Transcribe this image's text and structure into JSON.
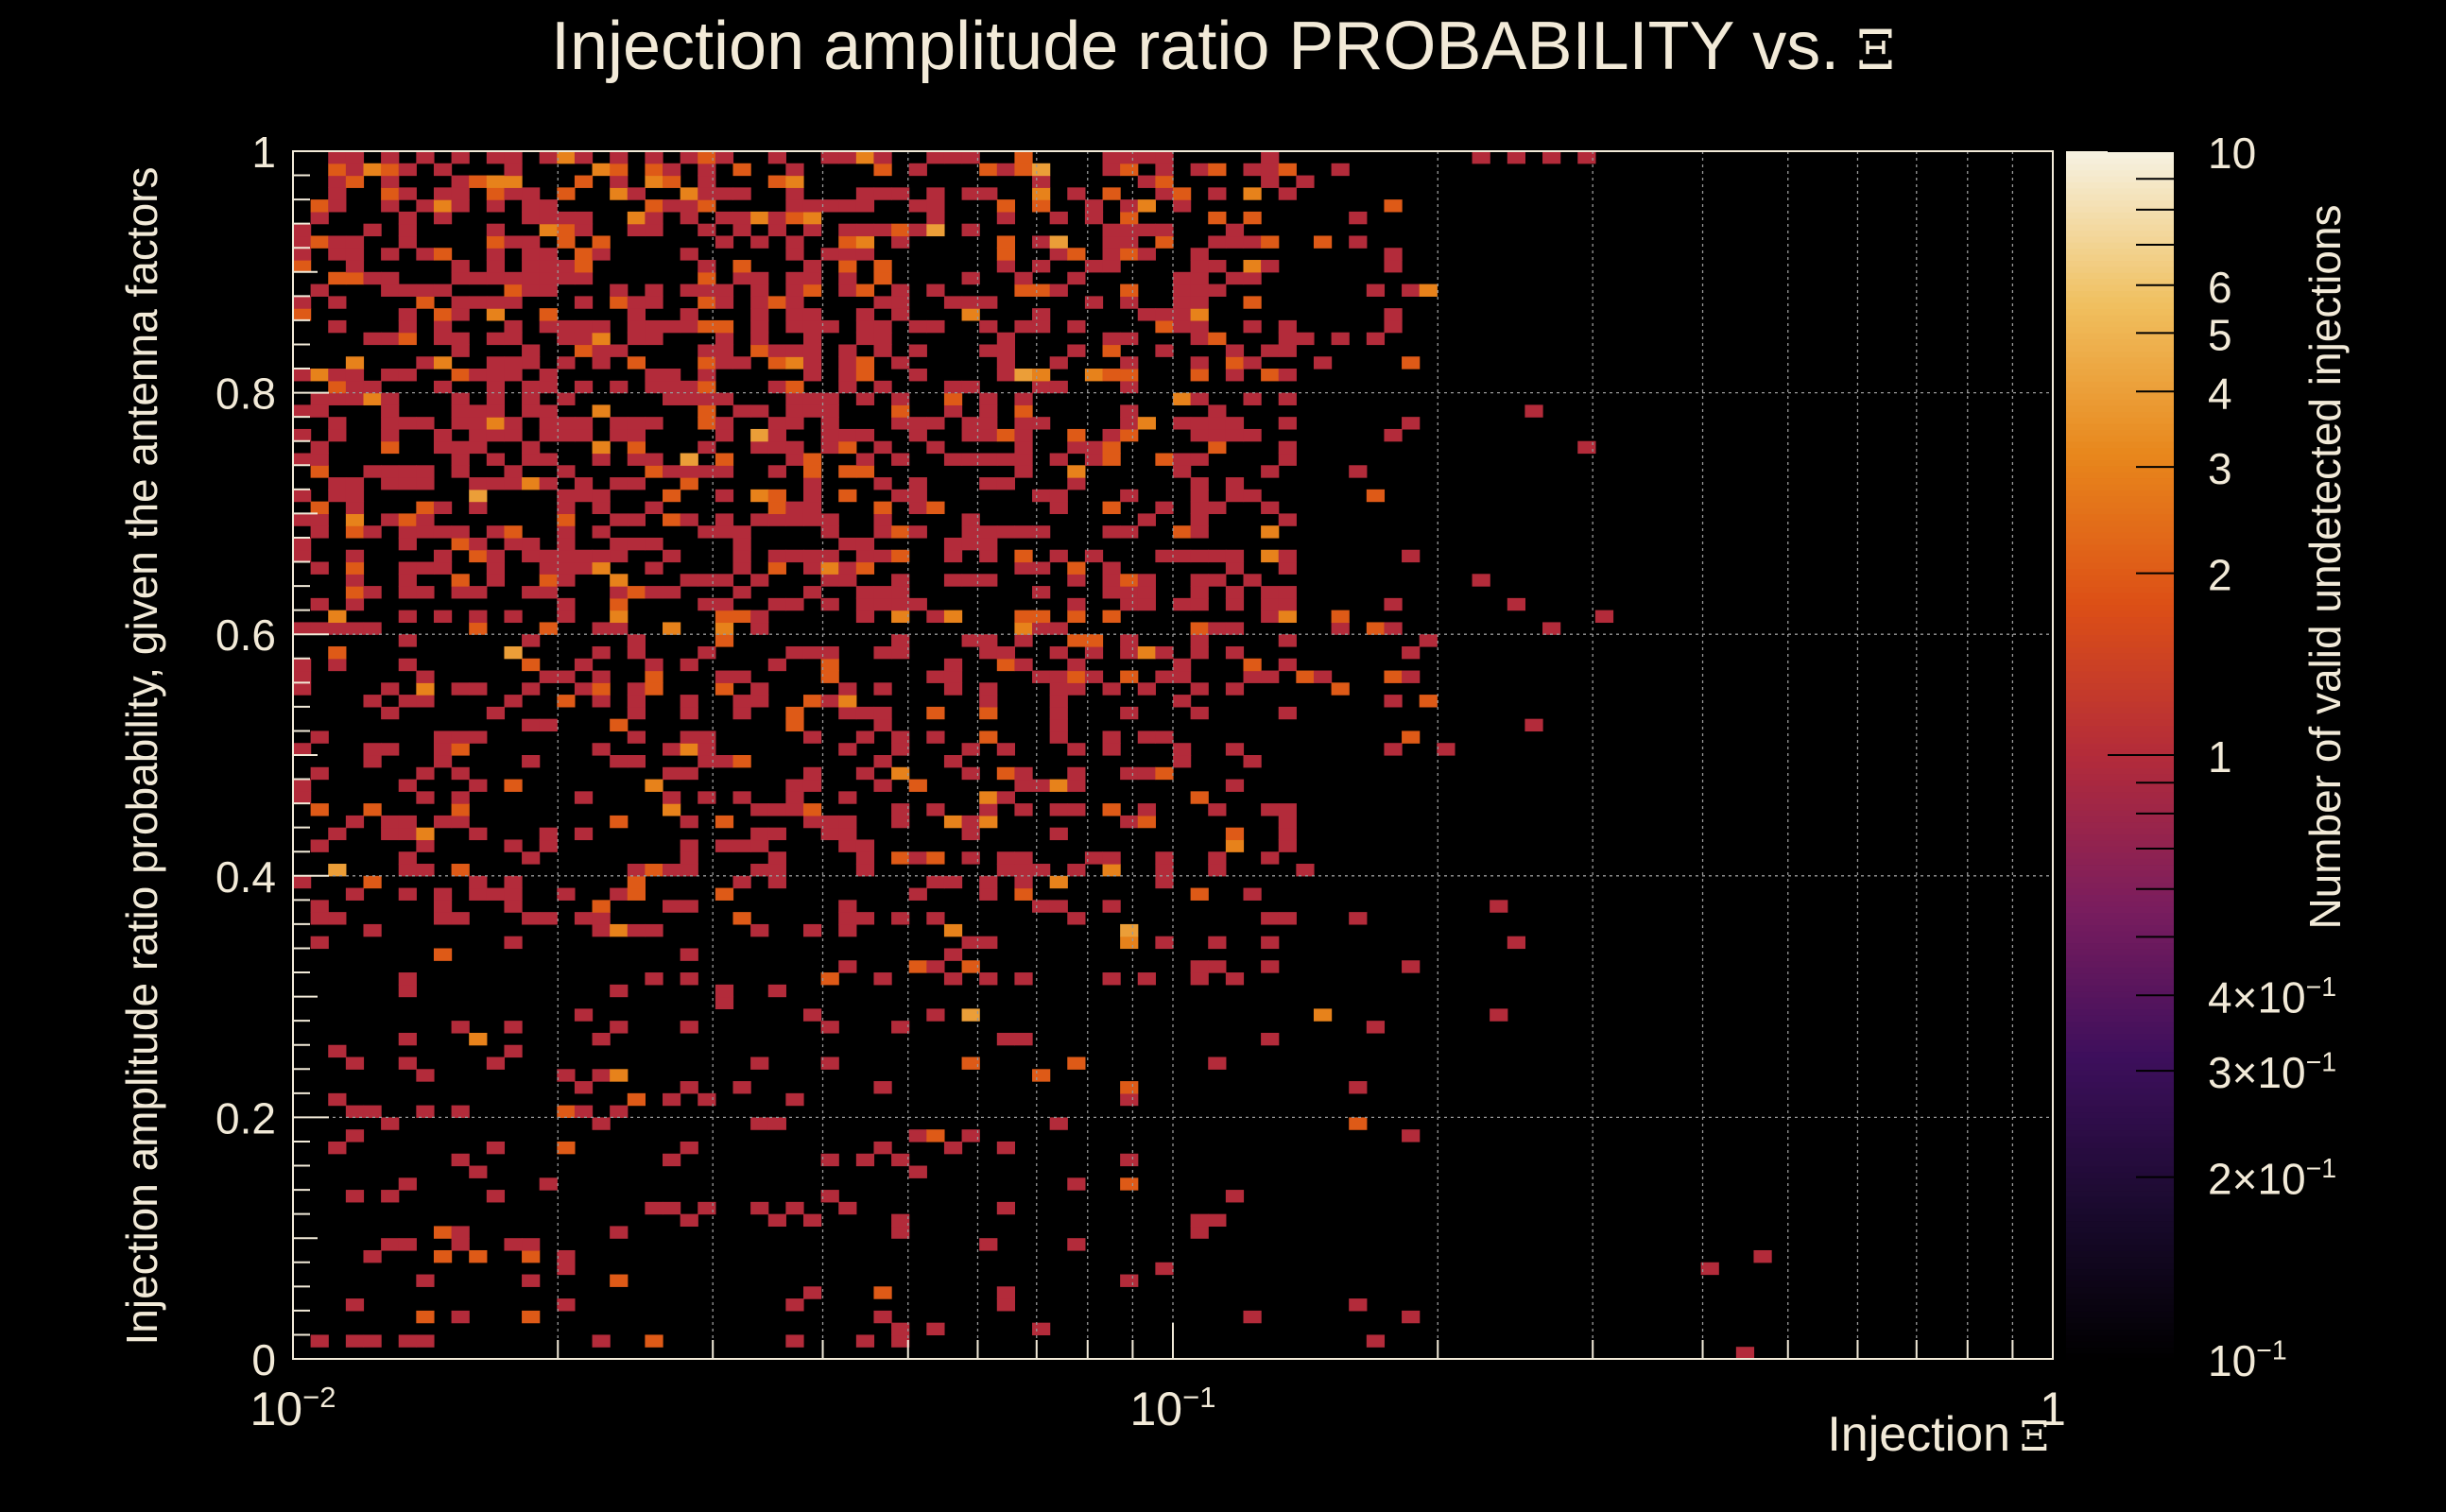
{
  "title": "Injection amplitude ratio PROBABILITY vs.",
  "title_symbol": "Ξ",
  "chart_data": {
    "type": "heatmap",
    "title": "Injection amplitude ratio PROBABILITY vs. Ξ",
    "xlabel": "Injection",
    "xlabel_symbol": "Ξ",
    "ylabel": "Injection amplitude ratio probability, given the antenna factors",
    "zlabel": "Number of valid undetected injections",
    "x_scale": "log",
    "x_range": [
      0.01,
      1
    ],
    "y_range": [
      0,
      1
    ],
    "z_scale": "log",
    "z_range": [
      0.1,
      10
    ],
    "x_ticks": [
      {
        "value": 0.01,
        "label": "10",
        "exp": "−2"
      },
      {
        "value": 0.1,
        "label": "10",
        "exp": "−1"
      },
      {
        "value": 1,
        "label": "1",
        "exp": ""
      }
    ],
    "y_ticks": [
      {
        "value": 0,
        "label": "0"
      },
      {
        "value": 0.2,
        "label": "0.2"
      },
      {
        "value": 0.4,
        "label": "0.4"
      },
      {
        "value": 0.6,
        "label": "0.6"
      },
      {
        "value": 0.8,
        "label": "0.8"
      },
      {
        "value": 1,
        "label": "1"
      }
    ],
    "z_ticks": [
      {
        "value": 0.1,
        "label": "10",
        "exp": "−1"
      },
      {
        "value": 0.2,
        "label": "2×10",
        "exp": "−1"
      },
      {
        "value": 0.3,
        "label": "3×10",
        "exp": "−1"
      },
      {
        "value": 0.4,
        "label": "4×10",
        "exp": "−1"
      },
      {
        "value": 1,
        "label": "1",
        "exp": ""
      },
      {
        "value": 2,
        "label": "2",
        "exp": ""
      },
      {
        "value": 3,
        "label": "3",
        "exp": ""
      },
      {
        "value": 4,
        "label": "4",
        "exp": ""
      },
      {
        "value": 5,
        "label": "5",
        "exp": ""
      },
      {
        "value": 6,
        "label": "6",
        "exp": ""
      },
      {
        "value": 10,
        "label": "10",
        "exp": ""
      }
    ],
    "bins": {
      "nx": 100,
      "ny": 100
    },
    "colormap": [
      "#000000",
      "#1a0a2e",
      "#3d0f5c",
      "#7a1d5e",
      "#b32b3a",
      "#dc4f16",
      "#e8871c",
      "#f0c060",
      "#f6f2e2"
    ],
    "density_profile": [
      {
        "log_x_from": -2.0,
        "log_x_to": -1.3,
        "y_from": 0.6,
        "y_to": 1.0,
        "fill": 0.45
      },
      {
        "log_x_from": -2.0,
        "log_x_to": -1.3,
        "y_from": 0.35,
        "y_to": 0.6,
        "fill": 0.28
      },
      {
        "log_x_from": -2.0,
        "log_x_to": -1.3,
        "y_from": 0.0,
        "y_to": 0.35,
        "fill": 0.09
      },
      {
        "log_x_from": -1.3,
        "log_x_to": -0.85,
        "y_from": 0.55,
        "y_to": 1.0,
        "fill": 0.35
      },
      {
        "log_x_from": -1.3,
        "log_x_to": -0.85,
        "y_from": 0.3,
        "y_to": 0.55,
        "fill": 0.2
      },
      {
        "log_x_from": -1.3,
        "log_x_to": -0.85,
        "y_from": 0.0,
        "y_to": 0.3,
        "fill": 0.05
      },
      {
        "log_x_from": -0.85,
        "log_x_to": -0.7,
        "y_from": 0.5,
        "y_to": 1.0,
        "fill": 0.12
      },
      {
        "log_x_from": -0.85,
        "log_x_to": -0.7,
        "y_from": 0.0,
        "y_to": 0.5,
        "fill": 0.03
      }
    ],
    "outliers": [
      {
        "x": 0.22,
        "y": 0.995
      },
      {
        "x": 0.25,
        "y": 0.995
      },
      {
        "x": 0.27,
        "y": 0.995
      },
      {
        "x": 0.3,
        "y": 0.995
      },
      {
        "x": 0.26,
        "y": 0.78
      },
      {
        "x": 0.3,
        "y": 0.75
      },
      {
        "x": 0.31,
        "y": 0.61
      },
      {
        "x": 0.27,
        "y": 0.6
      },
      {
        "x": 0.26,
        "y": 0.52
      },
      {
        "x": 0.23,
        "y": 0.37
      },
      {
        "x": 0.25,
        "y": 0.34
      },
      {
        "x": 0.2,
        "y": 0.5
      },
      {
        "x": 0.23,
        "y": 0.29
      },
      {
        "x": 0.41,
        "y": 0.07
      },
      {
        "x": 0.46,
        "y": 0.085
      },
      {
        "x": 0.44,
        "y": 0.005
      },
      {
        "x": 0.24,
        "y": 0.62
      },
      {
        "x": 0.22,
        "y": 0.64
      }
    ]
  }
}
